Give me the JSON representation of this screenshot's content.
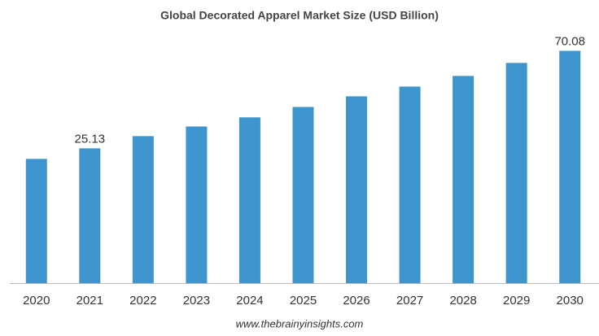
{
  "chart_data": {
    "type": "bar",
    "title": "Global Decorated Apparel Market Size (USD Billion)",
    "categories": [
      "2020",
      "2021",
      "2022",
      "2023",
      "2024",
      "2025",
      "2026",
      "2027",
      "2028",
      "2029",
      "2030"
    ],
    "values": [
      20.26,
      25.13,
      30.75,
      35.2,
      39.4,
      44.2,
      49.1,
      53.6,
      58.5,
      64.5,
      70.08
    ],
    "value_labels": [
      null,
      "25.13",
      null,
      null,
      null,
      null,
      null,
      null,
      null,
      null,
      "70.08"
    ],
    "color": "#3e95cd",
    "ylim": [
      -37,
      77
    ],
    "source": "www.thebrainyinsights.com"
  }
}
